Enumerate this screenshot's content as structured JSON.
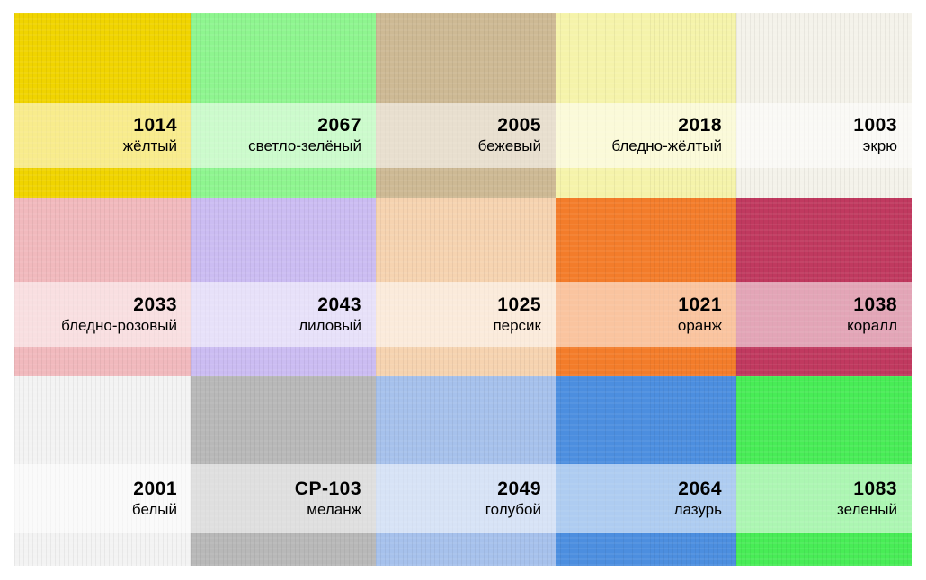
{
  "swatches": [
    {
      "code": "1014",
      "name": "жёлтый",
      "color": "#f0d400"
    },
    {
      "code": "2067",
      "name": "светло-зелёный",
      "color": "#8ef58f"
    },
    {
      "code": "2005",
      "name": "бежевый",
      "color": "#cdb994"
    },
    {
      "code": "2018",
      "name": "бледно-жёлтый",
      "color": "#f5f3aa"
    },
    {
      "code": "1003",
      "name": "экрю",
      "color": "#f4f2ea"
    },
    {
      "code": "2033",
      "name": "бледно-розовый",
      "color": "#f1b9bd"
    },
    {
      "code": "2043",
      "name": "лиловый",
      "color": "#cbbcf2"
    },
    {
      "code": "1025",
      "name": "персик",
      "color": "#f6d3b0"
    },
    {
      "code": "1021",
      "name": "оранж",
      "color": "#f37c2a"
    },
    {
      "code": "1038",
      "name": "коралл",
      "color": "#c0395f"
    },
    {
      "code": "2001",
      "name": "белый",
      "color": "#f3f3f3"
    },
    {
      "code": "CP-103",
      "name": "меланж",
      "color": "#b8b8b8"
    },
    {
      "code": "2049",
      "name": "голубой",
      "color": "#a6c1ec"
    },
    {
      "code": "2064",
      "name": "лазурь",
      "color": "#4c8edf"
    },
    {
      "code": "1083",
      "name": "зеленый",
      "color": "#48ec56"
    }
  ]
}
